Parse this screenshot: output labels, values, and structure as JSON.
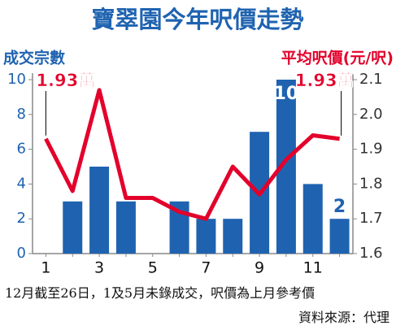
{
  "chart_data": {
    "type": "bar_line",
    "title": "寶翠園今年呎價走勢",
    "y_label": "成交宗數",
    "y2_label": "平均呎價(元/呎)",
    "categories": [
      "1",
      null,
      "3",
      null,
      "5",
      null,
      "7",
      null,
      "9",
      null,
      "11",
      null
    ],
    "series": [
      {
        "name": "成交宗數",
        "type": "bar",
        "color": "#1f63b0",
        "axis": "y",
        "values": [
          0,
          3,
          5,
          3,
          0,
          3,
          2,
          2,
          7,
          10,
          4,
          2
        ],
        "value_labels": [
          null,
          null,
          null,
          null,
          null,
          null,
          null,
          null,
          null,
          "10",
          null,
          "2"
        ]
      },
      {
        "name": "平均呎價",
        "type": "line",
        "color": "#e3002b",
        "axis": "y2",
        "values": [
          1.93,
          1.78,
          2.07,
          1.76,
          1.76,
          1.72,
          1.7,
          1.85,
          1.77,
          1.87,
          1.94,
          1.93
        ],
        "value_labels": [
          "1.93萬",
          null,
          null,
          null,
          null,
          null,
          null,
          null,
          null,
          null,
          null,
          "1.93萬"
        ]
      }
    ],
    "ylim": [
      0,
      10
    ],
    "yticks": [
      0,
      2,
      4,
      6,
      8,
      10
    ],
    "y2lim": [
      1.6,
      2.1
    ],
    "y2ticks": [
      1.6,
      1.7,
      1.8,
      1.9,
      {
        "value": 2.0,
        "label": "2.0"
      },
      2.1
    ],
    "footnote": "12月截至26日，1及5月未錄成交，呎價為上月參考價",
    "source": "資料來源：代理"
  }
}
